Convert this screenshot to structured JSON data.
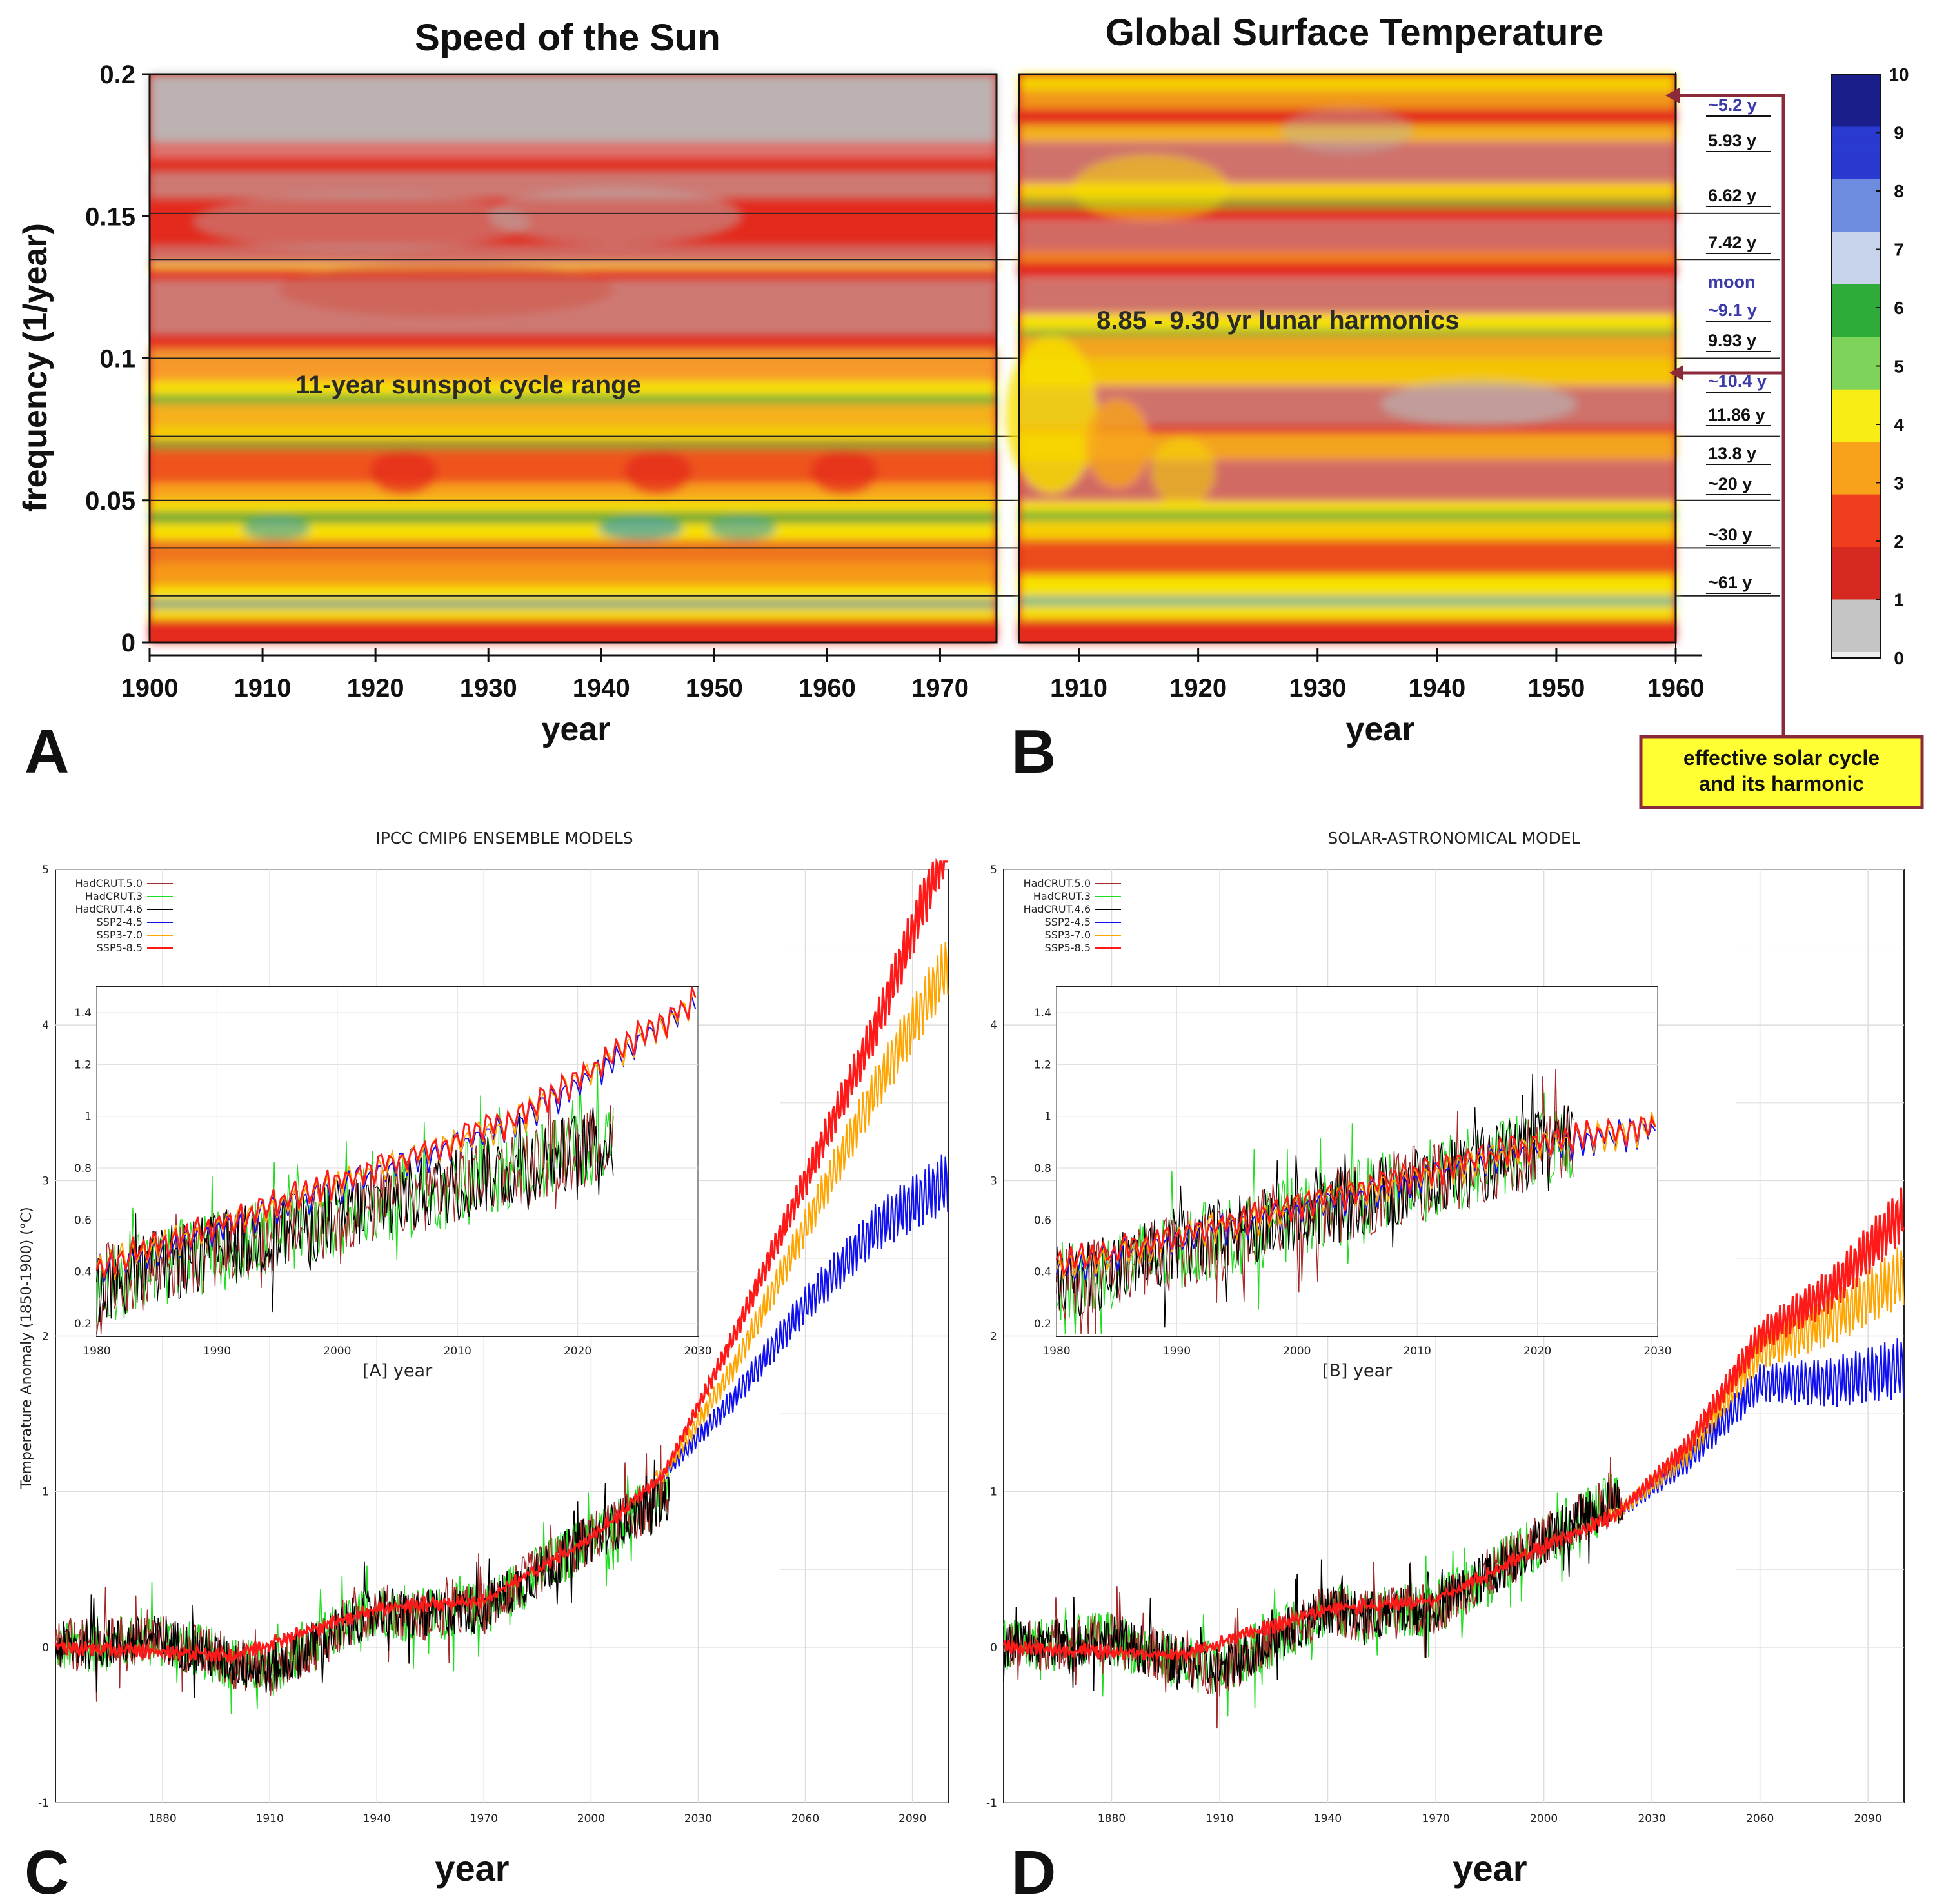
{
  "top_panels": {
    "A": {
      "letter": "A",
      "title": "Speed of the Sun",
      "ylabel": "frequency  (1/year)",
      "xlabel": "year",
      "annotation": "11-year sunspot cycle range"
    },
    "B": {
      "letter": "B",
      "title": "Global Surface Temperature",
      "xlabel": "year",
      "annotation": "8.85 - 9.30 yr lunar harmonics",
      "callout": [
        "effective solar cycle",
        "and its harmonic"
      ]
    },
    "colorbar_ticks": [
      "0",
      "1",
      "2",
      "3",
      "4",
      "5",
      "6",
      "7",
      "8",
      "9",
      "10"
    ],
    "colors": {
      "red": "#e42a1c",
      "yellow": "#f7e100",
      "green": "#3cbf3a",
      "gray": "#b9b9b9",
      "blue": "#1b2cc8",
      "callout_border": "#8a2a3a",
      "callout_fill": "#ffff33"
    }
  },
  "bottom_panels": {
    "C": {
      "letter": "C",
      "title": "IPCC CMIP6 ENSEMBLE MODELS",
      "ylabel": "Temperature Anomaly (1850-1900) (°C)",
      "xlabel": "year",
      "inset_label": "[A]   year"
    },
    "D": {
      "letter": "D",
      "title": "SOLAR-ASTRONOMICAL MODEL",
      "xlabel": "year",
      "inset_label": "[B]   year"
    },
    "legend": [
      "HadCRUT.5.0",
      "HadCRUT.3",
      "HadCRUT.4.6",
      "SSP2-4.5",
      "SSP3-7.0",
      "SSP5-8.5"
    ],
    "legend_colors": [
      "#a52a2a",
      "#22dd22",
      "#000000",
      "#1010ee",
      "#ffa500",
      "#ff1a1a"
    ]
  },
  "chart_data": [
    {
      "type": "heatmap",
      "title": "Speed of the Sun",
      "xlabel": "year",
      "ylabel": "frequency  (1/year)",
      "xlim": [
        1900,
        1975
      ],
      "ylim": [
        0,
        0.2
      ],
      "x_ticks": [
        "1900",
        "1910",
        "1920",
        "1930",
        "1940",
        "1950",
        "1960",
        "1970"
      ],
      "y_ticks": [
        "0",
        "0.05",
        "0.1",
        "0.15",
        "0.2"
      ],
      "reference_frequencies": [
        0.0164,
        0.0333,
        0.05,
        0.0725,
        0.1,
        0.1348,
        0.151
      ],
      "colorbar": {
        "min": 0,
        "max": 10
      }
    },
    {
      "type": "heatmap",
      "title": "Global Surface Temperature",
      "xlabel": "year",
      "xlim": [
        1905,
        1960
      ],
      "x_ticks": [
        "1910",
        "1920",
        "1930",
        "1940",
        "1950",
        "1960"
      ],
      "ylim": [
        0,
        0.2
      ],
      "period_labels": [
        "~5.2 y",
        "5.93 y",
        "6.62 y",
        "7.42 y",
        "moon",
        "~9.1 y",
        "9.93 y",
        "~10.4 y",
        "11.86 y",
        "13.8 y",
        "~20 y",
        "~30 y",
        "~61 y"
      ]
    },
    {
      "type": "line",
      "title": "IPCC CMIP6 ENSEMBLE MODELS",
      "xlabel": "year",
      "ylabel": "Temperature Anomaly (1850-1900) (°C)",
      "xlim": [
        1850,
        2100
      ],
      "ylim": [
        -1,
        5
      ],
      "x_ticks": [
        "1880",
        "1910",
        "1940",
        "1970",
        "2000",
        "2030",
        "2060",
        "2090"
      ],
      "y_ticks": [
        "-1",
        "0",
        "1",
        "2",
        "3",
        "4",
        "5"
      ],
      "series": [
        {
          "name": "HadCRUT.4.6",
          "x": [
            1850,
            1880,
            1900,
            1910,
            1940,
            1950,
            1970,
            1980,
            2000,
            2020
          ],
          "y": [
            0.0,
            0.05,
            -0.1,
            -0.15,
            0.25,
            0.2,
            0.25,
            0.4,
            0.7,
            0.95
          ]
        },
        {
          "name": "SSP2-4.5",
          "x": [
            2020,
            2040,
            2060,
            2080,
            2100
          ],
          "y": [
            1.1,
            1.6,
            2.2,
            2.7,
            3.0
          ]
        },
        {
          "name": "SSP3-7.0",
          "x": [
            2020,
            2040,
            2060,
            2080,
            2100
          ],
          "y": [
            1.1,
            1.8,
            2.7,
            3.6,
            4.4
          ]
        },
        {
          "name": "SSP5-8.5",
          "x": [
            1850,
            1900,
            1940,
            1970,
            2000,
            2020,
            2040,
            2060,
            2080,
            2100
          ],
          "y": [
            0.0,
            -0.05,
            0.25,
            0.3,
            0.7,
            1.1,
            2.0,
            3.0,
            4.0,
            5.2
          ]
        }
      ],
      "inset": {
        "xlim": [
          1980,
          2030
        ],
        "ylim": [
          0.15,
          1.5
        ],
        "x_ticks": [
          "1980",
          "1990",
          "2000",
          "2010",
          "2020",
          "2030"
        ],
        "y_ticks": [
          "0.2",
          "0.4",
          "0.6",
          "0.8",
          "1",
          "1.2",
          "1.4"
        ]
      }
    },
    {
      "type": "line",
      "title": "SOLAR-ASTRONOMICAL MODEL",
      "xlabel": "year",
      "xlim": [
        1850,
        2100
      ],
      "ylim": [
        -1,
        5
      ],
      "x_ticks": [
        "1880",
        "1910",
        "1940",
        "1970",
        "2000",
        "2030",
        "2060",
        "2090"
      ],
      "y_ticks": [
        "-1",
        "0",
        "1",
        "2",
        "3",
        "4",
        "5"
      ],
      "series": [
        {
          "name": "HadCRUT.4.6",
          "x": [
            1850,
            1880,
            1900,
            1910,
            1940,
            1950,
            1970,
            1980,
            2000,
            2020
          ],
          "y": [
            0.0,
            0.05,
            -0.1,
            -0.15,
            0.25,
            0.2,
            0.25,
            0.4,
            0.7,
            0.95
          ]
        },
        {
          "name": "SSP2-4.5",
          "x": [
            2020,
            2040,
            2060,
            2080,
            2100
          ],
          "y": [
            0.85,
            1.2,
            1.7,
            1.7,
            1.8
          ]
        },
        {
          "name": "SSP3-7.0",
          "x": [
            2020,
            2040,
            2060,
            2080,
            2100
          ],
          "y": [
            0.85,
            1.25,
            1.9,
            2.1,
            2.4
          ]
        },
        {
          "name": "SSP5-8.5",
          "x": [
            1850,
            1900,
            1940,
            1970,
            2000,
            2020,
            2040,
            2060,
            2080,
            2100
          ],
          "y": [
            0.0,
            -0.05,
            0.25,
            0.3,
            0.65,
            0.85,
            1.3,
            2.0,
            2.3,
            2.8
          ]
        }
      ],
      "inset": {
        "xlim": [
          1980,
          2030
        ],
        "ylim": [
          0.15,
          1.5
        ],
        "x_ticks": [
          "1980",
          "1990",
          "2000",
          "2010",
          "2020",
          "2030"
        ],
        "y_ticks": [
          "0.2",
          "0.4",
          "0.6",
          "0.8",
          "1",
          "1.2",
          "1.4"
        ]
      }
    }
  ]
}
